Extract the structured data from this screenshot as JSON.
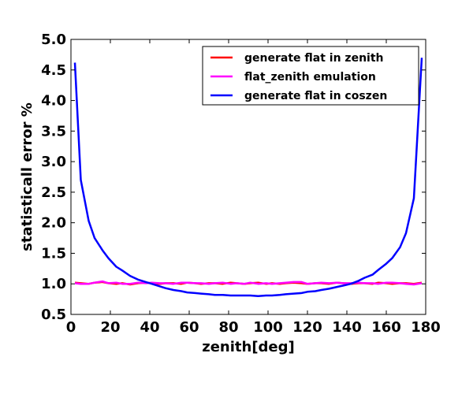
{
  "chart_data": {
    "type": "line",
    "xlabel": "zenith[deg]",
    "ylabel": "statisticall error %",
    "xlim": [
      0,
      180
    ],
    "ylim": [
      0.5,
      5.0
    ],
    "xticks": [
      0,
      20,
      40,
      60,
      80,
      100,
      120,
      140,
      160,
      180
    ],
    "yticks": [
      0.5,
      1.0,
      1.5,
      2.0,
      2.5,
      3.0,
      3.5,
      4.0,
      4.5,
      5.0
    ],
    "xtick_labels": [
      "0",
      "20",
      "40",
      "60",
      "80",
      "100",
      "120",
      "140",
      "160",
      "180"
    ],
    "ytick_labels": [
      "0.5",
      "1.0",
      "1.5",
      "2.0",
      "2.5",
      "3.0",
      "3.5",
      "4.0",
      "4.5",
      "5.0"
    ],
    "grid": false,
    "legend_position": "top-right",
    "x": [
      2,
      5,
      9,
      12,
      16,
      19,
      23,
      26,
      30,
      34,
      38,
      41,
      45,
      48,
      52,
      56,
      59,
      63,
      66,
      70,
      73,
      77,
      81,
      84,
      88,
      91,
      95,
      99,
      102,
      106,
      109,
      113,
      117,
      120,
      124,
      127,
      131,
      135,
      138,
      142,
      146,
      149,
      153,
      156,
      160,
      163,
      167,
      170,
      174,
      178
    ],
    "series": [
      {
        "name": "generate flat in zenith",
        "color": "#ff0000",
        "values": [
          1.02,
          1.01,
          1.0,
          1.02,
          1.03,
          1.01,
          1.0,
          1.01,
          0.99,
          1.01,
          1.02,
          1.01,
          1.0,
          1.01,
          1.01,
          1.0,
          1.02,
          1.01,
          1.0,
          1.01,
          1.01,
          1.0,
          1.02,
          1.01,
          1.0,
          1.01,
          1.02,
          1.0,
          1.01,
          1.0,
          1.01,
          1.02,
          1.01,
          1.0,
          1.01,
          1.01,
          1.0,
          1.02,
          1.01,
          1.0,
          1.01,
          1.01,
          1.0,
          1.02,
          1.01,
          1.0,
          1.01,
          1.01,
          1.0,
          1.02
        ]
      },
      {
        "name": "flat_zenith emulation",
        "color": "#ff00ff",
        "values": [
          1.01,
          1.0,
          1.0,
          1.02,
          1.04,
          1.01,
          1.02,
          1.0,
          1.0,
          1.02,
          1.01,
          1.02,
          1.01,
          1.01,
          1.0,
          1.02,
          1.02,
          1.01,
          1.01,
          1.0,
          1.01,
          1.02,
          1.0,
          1.01,
          1.0,
          1.02,
          1.0,
          1.01,
          1.0,
          1.01,
          1.02,
          1.03,
          1.03,
          1.0,
          1.01,
          1.02,
          1.01,
          1.02,
          1.01,
          1.01,
          1.02,
          1.01,
          1.01,
          1.0,
          1.02,
          1.02,
          1.01,
          1.0,
          0.99,
          1.01
        ]
      },
      {
        "name": "generate flat in coszen",
        "color": "#0000ff",
        "values": [
          4.62,
          2.7,
          2.03,
          1.75,
          1.55,
          1.42,
          1.28,
          1.22,
          1.13,
          1.07,
          1.03,
          1.0,
          0.96,
          0.93,
          0.9,
          0.88,
          0.86,
          0.85,
          0.84,
          0.83,
          0.82,
          0.82,
          0.81,
          0.81,
          0.81,
          0.81,
          0.8,
          0.81,
          0.81,
          0.82,
          0.83,
          0.84,
          0.85,
          0.87,
          0.88,
          0.9,
          0.92,
          0.95,
          0.97,
          1.0,
          1.05,
          1.1,
          1.15,
          1.23,
          1.33,
          1.42,
          1.6,
          1.83,
          2.4,
          4.7
        ]
      }
    ]
  }
}
